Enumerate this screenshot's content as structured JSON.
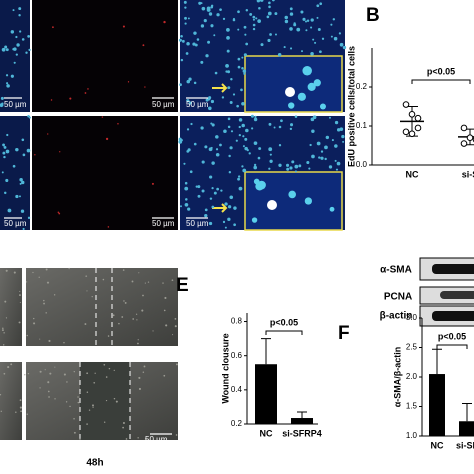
{
  "panel_labels": {
    "b": "B",
    "e": "E",
    "f": "F"
  },
  "scale_bar_label": "50 µm",
  "time_label": "48h",
  "blot_labels": [
    "α-SMA",
    "PCNA",
    "β-actin"
  ],
  "chart_data": [
    {
      "type": "dot",
      "ylabel": "EdU positive cells/total cells",
      "categories": [
        "NC",
        "si-S"
      ],
      "points": [
        [
          0.155,
          0.13,
          0.12,
          0.085,
          0.08,
          0.095
        ],
        [
          0.095,
          0.07,
          0.065,
          0.055
        ]
      ],
      "values": [
        0.112,
        0.072
      ],
      "errors": [
        0.038,
        0.02
      ],
      "annotation": "p<0.05",
      "ylim": [
        0,
        0.3
      ],
      "yticks": [
        {
          "value": 0,
          "label": "0.0"
        },
        0.1,
        0.2
      ],
      "color": "#000000"
    },
    {
      "type": "bar",
      "ylabel": "Wound clousure",
      "categories": [
        "NC",
        "si-SFRP4"
      ],
      "values": [
        0.55,
        0.235
      ],
      "errors": [
        0.15,
        0.035
      ],
      "annotation": "p<0.05",
      "ylim": [
        0.2,
        0.85
      ],
      "yticks": [
        0.2,
        0.4,
        0.6,
        0.8
      ],
      "color": "#000000"
    },
    {
      "type": "bar",
      "ylabel": "α-SMA/β-actin",
      "categories": [
        "NC",
        "si-SF"
      ],
      "values": [
        2.05,
        1.25
      ],
      "errors": [
        0.42,
        0.3
      ],
      "annotation": "p<0.05",
      "ylim": [
        1.0,
        3.0
      ],
      "yticks": [
        {
          "value": 1,
          "label": "1.0"
        },
        1.5,
        {
          "value": 2,
          "label": "2.0"
        },
        2.5,
        {
          "value": 3,
          "label": "3.0"
        }
      ],
      "color": "#000000"
    }
  ]
}
